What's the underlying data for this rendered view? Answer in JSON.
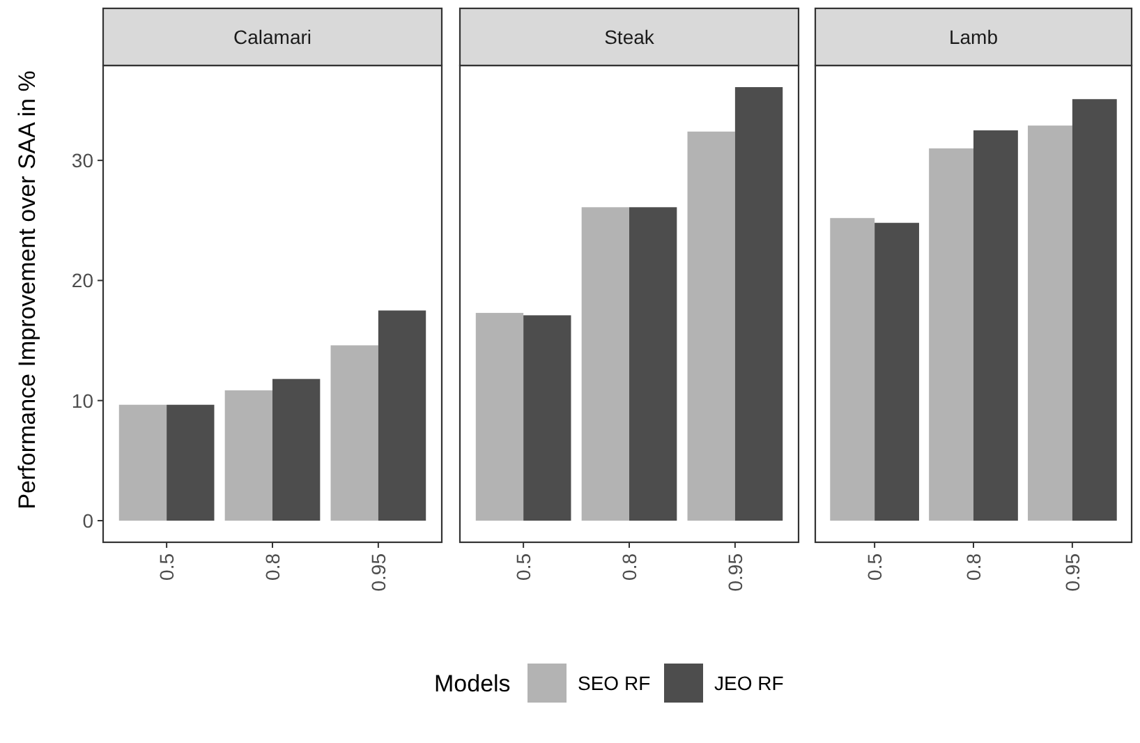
{
  "chart_data": [
    {
      "type": "bar",
      "title": "Calamari",
      "ylabel": "Performance Improvement over SAA in %",
      "categories": [
        "0.5",
        "0.8",
        "0.95"
      ],
      "ylim": [
        -1.8,
        37.9
      ],
      "yticks": [
        0,
        10,
        20,
        30
      ],
      "legend": "bottom",
      "legend_title": "Models",
      "series": [
        {
          "name": "SEO RF",
          "color": "#b3b3b3",
          "values": [
            9.65,
            10.85,
            14.6
          ]
        },
        {
          "name": "JEO RF",
          "color": "#4d4d4d",
          "values": [
            9.65,
            11.8,
            17.5
          ]
        }
      ]
    },
    {
      "type": "bar",
      "title": "Steak",
      "categories": [
        "0.5",
        "0.8",
        "0.95"
      ],
      "ylim": [
        -1.8,
        37.9
      ],
      "yticks": [
        0,
        10,
        20,
        30
      ],
      "tick_labels": "x",
      "series": [
        {
          "color": "#b3b3b3",
          "values": [
            17.3,
            26.1,
            32.4
          ]
        },
        {
          "color": "#4d4d4d",
          "values": [
            17.1,
            26.1,
            36.1
          ]
        }
      ]
    },
    {
      "type": "bar",
      "title": "Lamb",
      "categories": [
        "0.5",
        "0.8",
        "0.95"
      ],
      "ylim": [
        -1.8,
        37.9
      ],
      "yticks": [
        0,
        10,
        20,
        30
      ],
      "tick_labels": "x",
      "series": [
        {
          "color": "#b3b3b3",
          "values": [
            25.2,
            31.0,
            32.9
          ]
        },
        {
          "color": "#4d4d4d",
          "values": [
            24.8,
            32.5,
            35.1
          ]
        }
      ]
    }
  ]
}
